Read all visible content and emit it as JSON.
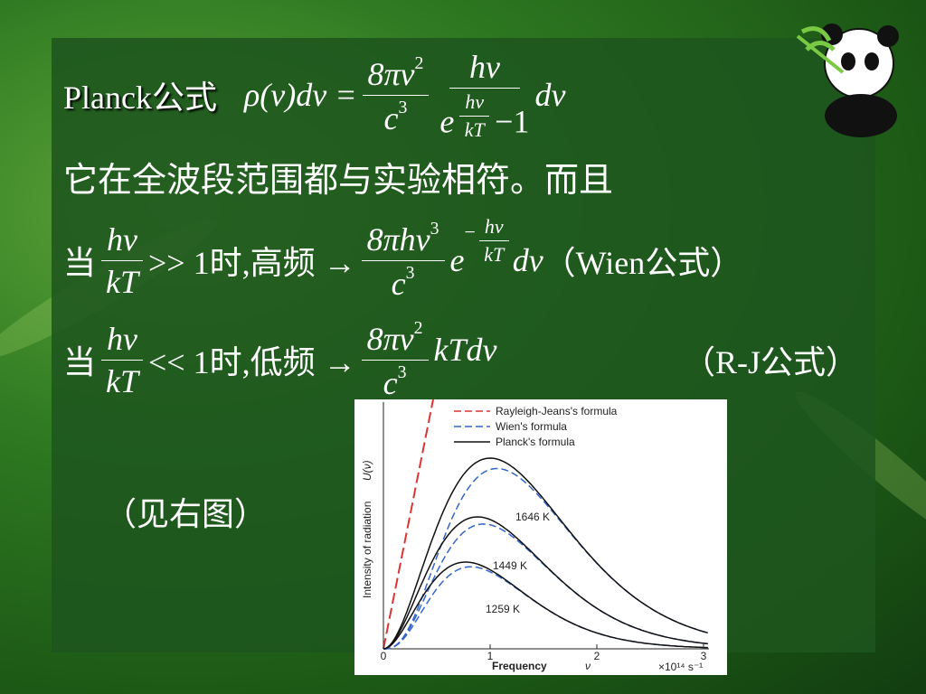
{
  "planck": {
    "label": "Planck公式",
    "lhs": "ρ(ν)dν =",
    "f1_num": "8πν",
    "f1_num_exp": "2",
    "f1_den": "c",
    "f1_den_exp": "3",
    "f2_num": "hν",
    "f2_den_base": "e",
    "f2_den_exp_num": "hν",
    "f2_den_exp_den": "kT",
    "f2_den_tail": "−1",
    "tail": "dν"
  },
  "line2": "它在全波段范围都与实验相符。而且",
  "wien": {
    "lead": "当",
    "cond_num": "hν",
    "cond_den": "kT",
    "cond": ">> 1时,高频 →",
    "num": "8πhν",
    "num_exp": "3",
    "den": "c",
    "den_exp": "3",
    "e": "e",
    "exp_sign": "−",
    "exp_num": "hν",
    "exp_den": "kT",
    "tail": "dν",
    "name": "（Wien公式）"
  },
  "rj": {
    "lead": "当",
    "cond_num": "hν",
    "cond_den": "kT",
    "cond": "<< 1时,低频 →",
    "num": "8πν",
    "num_exp": "2",
    "den": "c",
    "den_exp": "3",
    "tail": "kTdν",
    "name": "（R-J公式）"
  },
  "note": "（见右图）",
  "figure": {
    "legend": [
      "Rayleigh-Jeans's formula",
      "Wien's formula",
      "Planck's formula"
    ],
    "y_label": "Intensity of radiation",
    "y_label_var": "U(ν)",
    "x_label": "Frequency",
    "x_label_var": "ν",
    "x_unit": "×10¹⁴ s⁻¹",
    "x_ticks": [
      0,
      1,
      2,
      3
    ],
    "curve_labels": [
      "1646 K",
      "1449 K",
      "1259 K"
    ]
  }
}
